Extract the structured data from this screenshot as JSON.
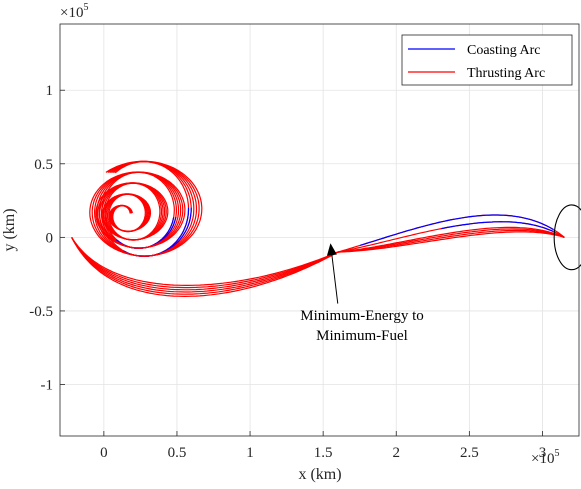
{
  "chart_data": {
    "type": "line",
    "title": "",
    "xlabel": "x (km)",
    "ylabel": "y (km)",
    "x_multiplier": {
      "base": "×10",
      "exponent": "5"
    },
    "y_multiplier": {
      "base": "×10",
      "exponent": "5"
    },
    "xlim": [
      -0.3,
      3.25
    ],
    "ylim": [
      -1.35,
      1.45
    ],
    "x_ticks": [
      {
        "value": 0,
        "label": "0"
      },
      {
        "value": 0.5,
        "label": "0.5"
      },
      {
        "value": 1,
        "label": "1"
      },
      {
        "value": 1.5,
        "label": "1.5"
      },
      {
        "value": 2,
        "label": "2"
      },
      {
        "value": 2.5,
        "label": "2.5"
      },
      {
        "value": 3,
        "label": "3"
      }
    ],
    "y_ticks": [
      {
        "value": 1,
        "label": "1"
      },
      {
        "value": 0.5,
        "label": "0.5"
      },
      {
        "value": 0,
        "label": "0"
      },
      {
        "value": -0.5,
        "label": "-0.5"
      },
      {
        "value": -1,
        "label": "-1"
      }
    ],
    "grid": true,
    "legend": {
      "position": "top-right",
      "entries": [
        {
          "label": "Coasting Arc",
          "color": "#0000ff"
        },
        {
          "label": "Thrusting Arc",
          "color": "#ff0000"
        }
      ]
    },
    "annotation": {
      "lines": [
        "Minimum-Energy to",
        "Minimum-Fuel"
      ],
      "arrow_from": [
        1.6,
        -0.45
      ],
      "arrow_to": [
        1.55,
        -0.04
      ]
    },
    "target_body": {
      "cx": 3.2,
      "cy": 0,
      "rx": 0.12,
      "ry": 0.22
    },
    "series": [
      {
        "amp": 0.0,
        "k": 1.0,
        "tail_bulge": 0.15
      },
      {
        "amp": 0.03,
        "k": 1.06,
        "tail_bulge": 0.07
      },
      {
        "amp": 0.06,
        "k": 1.12,
        "tail_bulge": 0.0
      },
      {
        "amp": 0.09,
        "k": 1.18,
        "tail_bulge": -0.02
      },
      {
        "amp": 0.12,
        "k": 1.24,
        "tail_bulge": -0.04
      },
      {
        "amp": 0.15,
        "k": 1.3,
        "tail_bulge": -0.06
      }
    ]
  }
}
